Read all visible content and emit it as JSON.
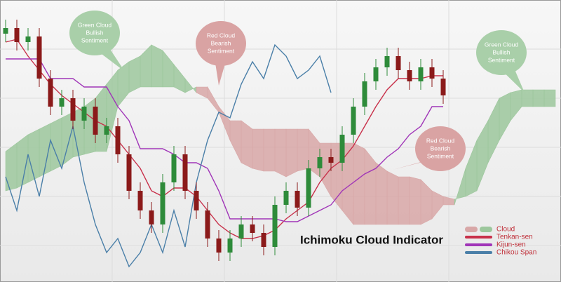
{
  "chart_data": {
    "type": "ichimoku",
    "title": "Ichimoku Cloud Indicator",
    "ylim": [
      0,
      100
    ],
    "candles": {
      "up_color": "#2e8b3a",
      "down_color": "#8b1a1a",
      "open": [
        88,
        90,
        85,
        87,
        72,
        62,
        65,
        57,
        62,
        52,
        55,
        45,
        32,
        25,
        20,
        35,
        45,
        32,
        25,
        15,
        10,
        15,
        20,
        17,
        12,
        27,
        32,
        26,
        40,
        44,
        42,
        52,
        62,
        71,
        76,
        80,
        75,
        71,
        76,
        72
      ],
      "high": [
        93,
        93,
        90,
        90,
        75,
        68,
        68,
        65,
        65,
        58,
        58,
        48,
        35,
        28,
        38,
        48,
        48,
        35,
        28,
        18,
        18,
        23,
        23,
        20,
        30,
        35,
        35,
        43,
        47,
        47,
        55,
        65,
        74,
        79,
        83,
        83,
        78,
        79,
        79,
        75
      ],
      "low": [
        85,
        82,
        82,
        69,
        59,
        59,
        54,
        54,
        49,
        49,
        42,
        29,
        22,
        17,
        17,
        32,
        29,
        22,
        12,
        7,
        7,
        12,
        14,
        9,
        9,
        24,
        23,
        23,
        37,
        39,
        39,
        49,
        59,
        68,
        73,
        72,
        68,
        68,
        69,
        63
      ],
      "close": [
        90,
        85,
        87,
        72,
        62,
        65,
        57,
        62,
        52,
        55,
        45,
        32,
        25,
        20,
        35,
        45,
        32,
        25,
        15,
        10,
        15,
        20,
        17,
        12,
        27,
        32,
        26,
        40,
        44,
        42,
        52,
        62,
        71,
        76,
        80,
        75,
        71,
        76,
        72,
        66
      ]
    },
    "cloud": {
      "name": "Cloud",
      "bullish_color": "#9cc79c",
      "bearish_color": "#d8a7a7",
      "senkou_a": [
        46,
        49,
        52,
        54,
        56,
        58,
        60,
        62,
        65,
        70,
        75,
        78,
        80,
        84,
        82,
        77,
        72,
        67,
        65,
        60,
        50,
        42,
        40,
        39,
        39,
        37,
        39,
        40,
        37,
        30,
        25,
        20,
        20,
        20,
        20,
        20,
        20,
        20,
        22,
        27,
        27,
        40,
        50,
        57,
        65,
        67,
        68,
        68,
        68,
        68
      ],
      "senkou_b": [
        32,
        33,
        35,
        37,
        39,
        41,
        44,
        45,
        46,
        46,
        62,
        67,
        69,
        69,
        69,
        69,
        67,
        69,
        69,
        62,
        57,
        57,
        54,
        54,
        54,
        54,
        54,
        54,
        49,
        49,
        49,
        49,
        47,
        42,
        39,
        37,
        37,
        36,
        32,
        30,
        29,
        30,
        32,
        42,
        50,
        57,
        62,
        62,
        62,
        62
      ]
    },
    "series": [
      {
        "name": "Tenkan-sen",
        "color": "#c8304a",
        "values": [
          85,
          86,
          80,
          75,
          70,
          66,
          63,
          60,
          57,
          55,
          50,
          45,
          40,
          32,
          30,
          33,
          33,
          30,
          25,
          20,
          17,
          15,
          15,
          16,
          18,
          22,
          25,
          28,
          35,
          40,
          43,
          48,
          55,
          62,
          68,
          72,
          72,
          72,
          73,
          73
        ]
      },
      {
        "name": "Kijun-sen",
        "color": "#a035b8",
        "values": [
          79,
          79,
          79,
          79,
          72,
          72,
          72,
          69,
          69,
          69,
          62,
          57,
          47,
          47,
          47,
          45,
          42,
          42,
          40,
          32,
          22,
          22,
          22,
          22,
          22,
          21,
          21,
          23,
          25,
          27,
          32,
          35,
          38,
          40,
          44,
          47,
          52,
          55,
          62,
          62
        ]
      },
      {
        "name": "Chikou Span",
        "color": "#4a7fa8",
        "values": [
          37,
          25,
          45,
          30,
          50,
          40,
          55,
          35,
          20,
          10,
          15,
          5,
          10,
          20,
          10,
          25,
          12,
          35,
          50,
          60,
          58,
          70,
          78,
          72,
          84,
          80,
          72,
          75,
          80,
          67
        ]
      }
    ],
    "annotations": [
      {
        "lines": [
          "Green Cloud",
          "Bullish",
          "Sentiment"
        ],
        "color": "#a9cfa9"
      },
      {
        "lines": [
          "Red Cloud",
          "Bearish",
          "Sentiment"
        ],
        "color": "#d9a3a3"
      },
      {
        "lines": [
          "Green Cloud",
          "Bullish",
          "Sentiment"
        ],
        "color": "#a9cfa9"
      },
      {
        "lines": [
          "Red Cloud",
          "Bearish",
          "Sentiment"
        ],
        "color": "#d9a3a3"
      }
    ]
  }
}
